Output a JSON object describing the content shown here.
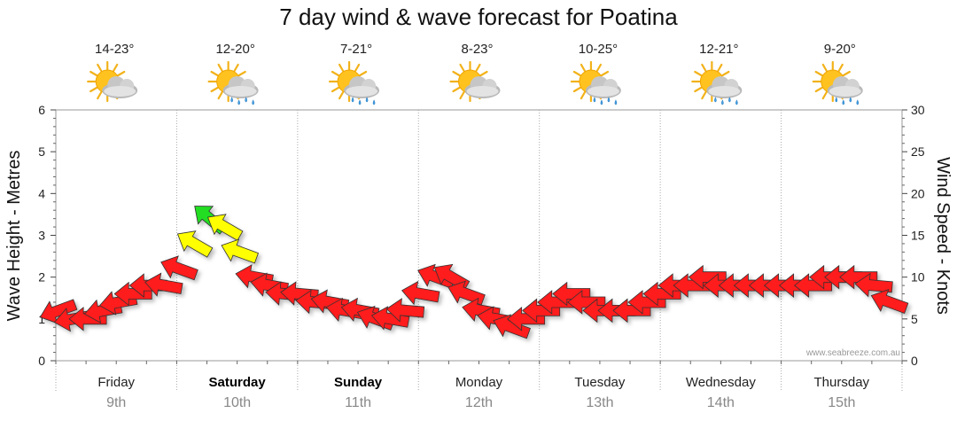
{
  "title": "7 day wind & wave forecast for Poatina",
  "watermark": "www.seabreeze.com.au",
  "colors": {
    "calm": "#ff1a1a",
    "moderate": "#ffff00",
    "strong": "#22dd22",
    "outline": "#333333"
  },
  "chart_data": {
    "type": "line",
    "y_left_label": "Wave Height - Metres",
    "y_right_label": "Wind Speed - Knots",
    "y_left_ticks": [
      "0",
      "1",
      "2",
      "3",
      "4",
      "5",
      "6"
    ],
    "y_right_ticks": [
      "0",
      "5",
      "10",
      "15",
      "20",
      "25",
      "30"
    ],
    "ylim_left": [
      0,
      6
    ],
    "ylim_right": [
      0,
      30
    ],
    "grid": true,
    "days": [
      {
        "name": "Friday",
        "num": "9th",
        "bold": false,
        "temp": "14-23°",
        "icon": "sun-cloud-icon"
      },
      {
        "name": "Saturday",
        "num": "10th",
        "bold": true,
        "temp": "12-20°",
        "icon": "sun-cloud-rain-icon"
      },
      {
        "name": "Sunday",
        "num": "11th",
        "bold": true,
        "temp": "7-21°",
        "icon": "sun-cloud-rain-icon"
      },
      {
        "name": "Monday",
        "num": "12th",
        "bold": false,
        "temp": "8-23°",
        "icon": "sun-cloud-icon"
      },
      {
        "name": "Tuesday",
        "num": "13th",
        "bold": false,
        "temp": "10-25°",
        "icon": "sun-cloud-rain-icon"
      },
      {
        "name": "Wednesday",
        "num": "14th",
        "bold": false,
        "temp": "12-21°",
        "icon": "sun-cloud-rain-icon"
      },
      {
        "name": "Thursday",
        "num": "15th",
        "bold": false,
        "temp": "9-20°",
        "icon": "sun-cloud-rain-icon"
      }
    ],
    "wind_series": {
      "name": "Wind Speed (knots)",
      "hours": [
        0,
        3,
        6,
        9,
        12,
        15,
        18,
        21,
        24,
        27,
        30,
        33,
        36,
        39,
        42,
        45,
        48,
        51,
        54,
        57,
        60,
        63,
        66,
        69,
        72,
        75,
        78,
        81,
        84,
        87,
        90,
        93,
        96,
        99,
        102,
        105,
        108,
        111,
        114,
        117,
        120,
        123,
        126,
        129,
        132,
        135,
        138,
        141,
        144,
        147,
        150,
        153,
        156,
        159,
        162,
        165
      ],
      "speed": [
        6,
        5,
        5,
        6,
        7,
        8,
        9,
        9,
        11,
        14,
        17,
        16,
        13,
        10,
        9,
        8,
        8,
        7,
        7,
        6,
        6,
        5,
        5,
        6,
        8,
        10,
        10,
        8,
        6,
        5,
        4,
        5,
        6,
        7,
        8,
        7,
        6,
        6,
        6,
        7,
        8,
        9,
        9,
        10,
        9,
        9,
        9,
        9,
        9,
        9,
        9,
        10,
        10,
        10,
        9,
        7
      ],
      "direction_deg": [
        70,
        80,
        90,
        80,
        80,
        90,
        90,
        100,
        110,
        120,
        130,
        120,
        110,
        100,
        100,
        95,
        95,
        95,
        100,
        100,
        100,
        110,
        100,
        95,
        100,
        110,
        120,
        110,
        100,
        100,
        110,
        90,
        90,
        90,
        90,
        90,
        90,
        90,
        90,
        90,
        90,
        90,
        90,
        90,
        90,
        90,
        90,
        90,
        90,
        90,
        90,
        90,
        90,
        90,
        95,
        110
      ]
    }
  }
}
